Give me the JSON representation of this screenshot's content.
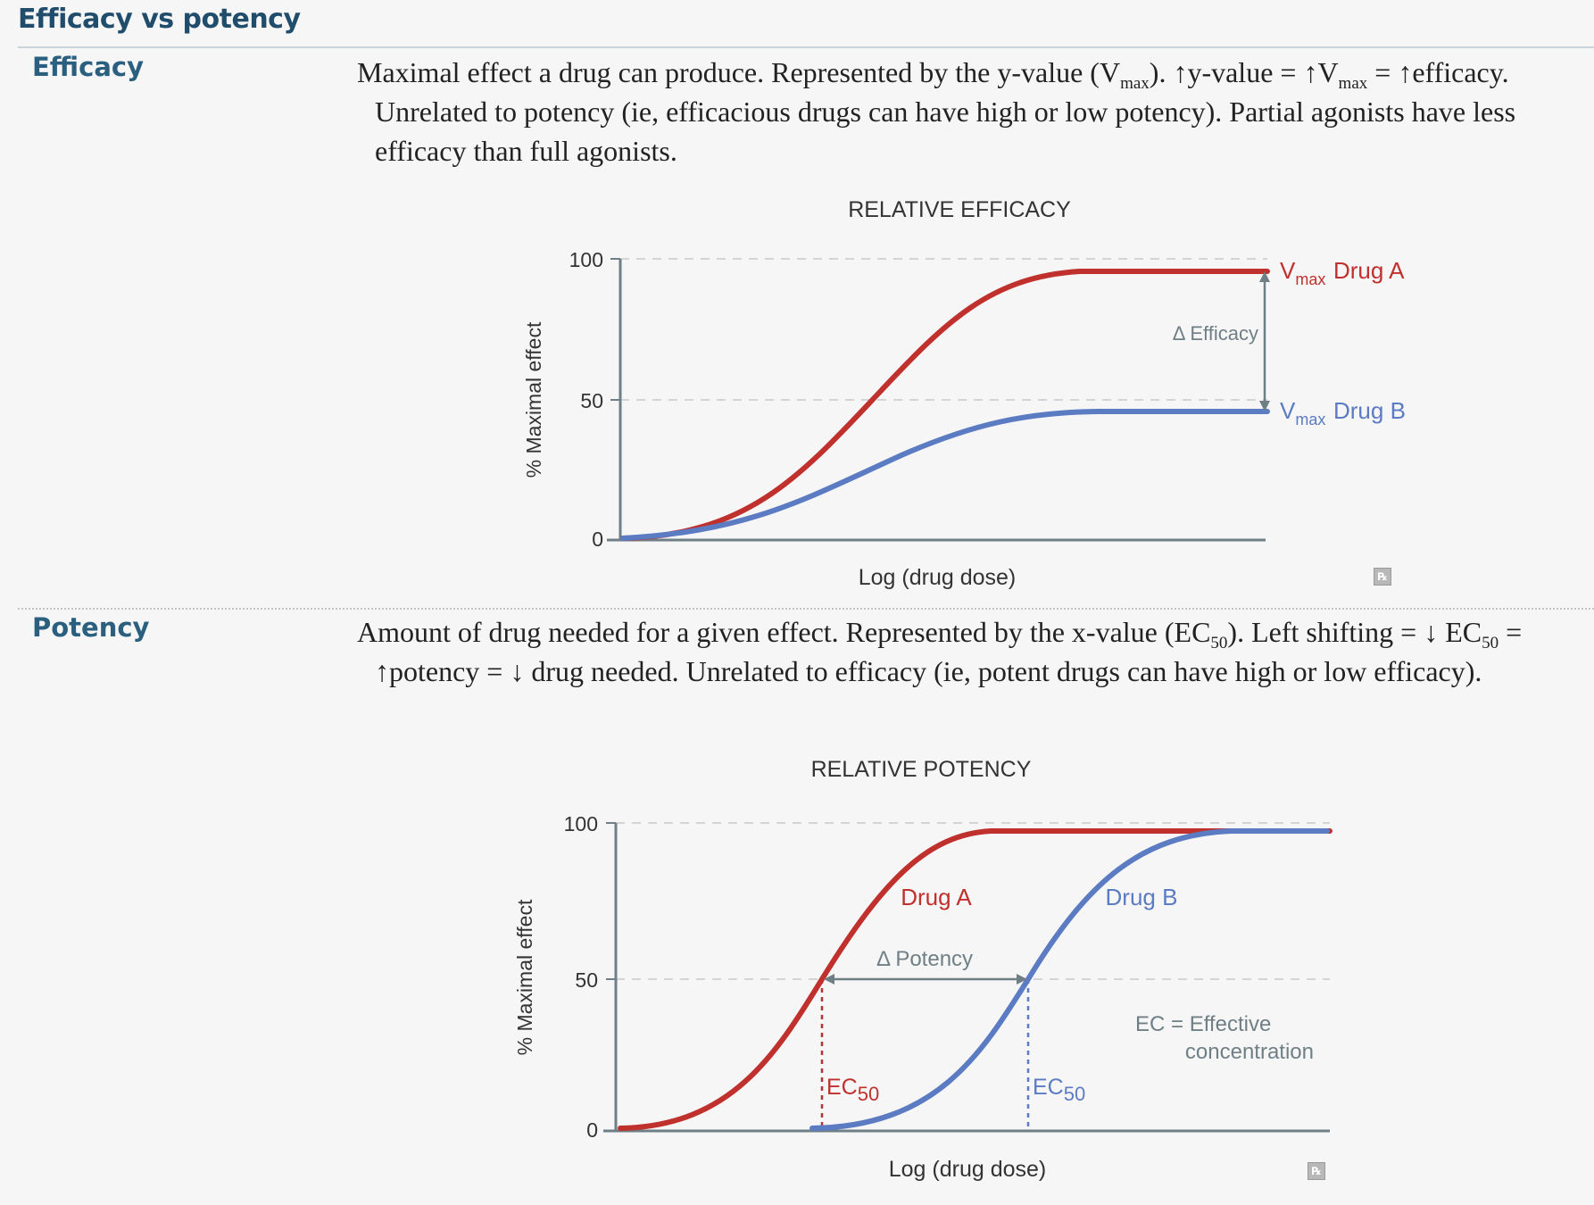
{
  "title": "Efficacy vs potency",
  "efficacy": {
    "term": "Efficacy",
    "desc": {
      "t1": "Maximal effect a drug can produce. Represented by the y-value (V",
      "sub1": "max",
      "t2": "). ",
      "up1": "↑",
      "t3": "y-value = ",
      "up2": "↑",
      "t4": "V",
      "sub2": "max",
      "t5": " = ",
      "up3": "↑",
      "t6": "efficacy. Unrelated to potency (ie, efficacious drugs can have high or low potency). Partial agonists have less efficacy than full agonists."
    },
    "chart": {
      "title": "RELATIVE EFFICACY",
      "ylabel": "% Maximal effect",
      "xlabel": "Log (drug dose)",
      "ticks": [
        "100",
        "50",
        "0"
      ],
      "vmax_v": "V",
      "vmax_sub": "max",
      "drug_a": "Drug A",
      "drug_b": "Drug B",
      "delta": "Δ Efficacy"
    },
    "icon": "rx-icon"
  },
  "potency": {
    "term": "Potency",
    "desc": {
      "t1": "Amount of drug needed for a given effect. Represented by the x-value (EC",
      "sub1": "50",
      "t2": "). Left shifting = ",
      "down1": "↓",
      "t3": " EC",
      "sub2": "50",
      "t4": " = ",
      "up1": "↑",
      "t5": "potency = ",
      "down2": "↓",
      "t6": " drug needed. Unrelated to efficacy (ie, potent drugs can have high or low efficacy)."
    },
    "chart": {
      "title": "RELATIVE POTENCY",
      "ylabel": "% Maximal effect",
      "xlabel": "Log (drug dose)",
      "ticks": [
        "100",
        "50",
        "0"
      ],
      "drug_a": "Drug A",
      "drug_b": "Drug B",
      "delta": "Δ Potency",
      "ec_label": "EC",
      "ec_sub": "50",
      "ec_note_1": "EC = Effective",
      "ec_note_2": "concentration"
    },
    "icon": "rx-icon"
  },
  "chart_data": [
    {
      "type": "line",
      "title": "RELATIVE EFFICACY",
      "xlabel": "Log (drug dose)",
      "ylabel": "% Maximal effect",
      "ylim": [
        0,
        100
      ],
      "yticks": [
        0,
        50,
        100
      ],
      "x": [
        0,
        1,
        2,
        3,
        4,
        5,
        6,
        7,
        8,
        9,
        10
      ],
      "series": [
        {
          "name": "Drug A",
          "color": "#c0302d",
          "values": [
            0,
            2,
            7,
            18,
            38,
            62,
            80,
            90,
            94,
            95,
            95
          ]
        },
        {
          "name": "Drug B",
          "color": "#5b7bc2",
          "values": [
            0,
            1,
            4,
            9,
            18,
            28,
            36,
            41,
            44,
            45,
            45
          ]
        }
      ],
      "annotations": [
        "Δ Efficacy",
        "Vmax Drug A",
        "Vmax Drug B"
      ]
    },
    {
      "type": "line",
      "title": "RELATIVE POTENCY",
      "xlabel": "Log (drug dose)",
      "ylabel": "% Maximal effect",
      "ylim": [
        0,
        100
      ],
      "yticks": [
        0,
        50,
        100
      ],
      "x": [
        0,
        1,
        2,
        3,
        4,
        5,
        6,
        7,
        8,
        9,
        10
      ],
      "series": [
        {
          "name": "Drug A",
          "color": "#c0302d",
          "values": [
            0,
            5,
            20,
            50,
            80,
            94,
            97,
            97,
            97,
            97,
            97
          ]
        },
        {
          "name": "Drug B",
          "color": "#5b7bc2",
          "values": [
            null,
            null,
            null,
            0,
            8,
            30,
            62,
            86,
            95,
            97,
            97
          ]
        }
      ],
      "annotations": [
        "Δ Potency",
        "EC50",
        "EC50",
        "EC = Effective concentration"
      ]
    }
  ]
}
